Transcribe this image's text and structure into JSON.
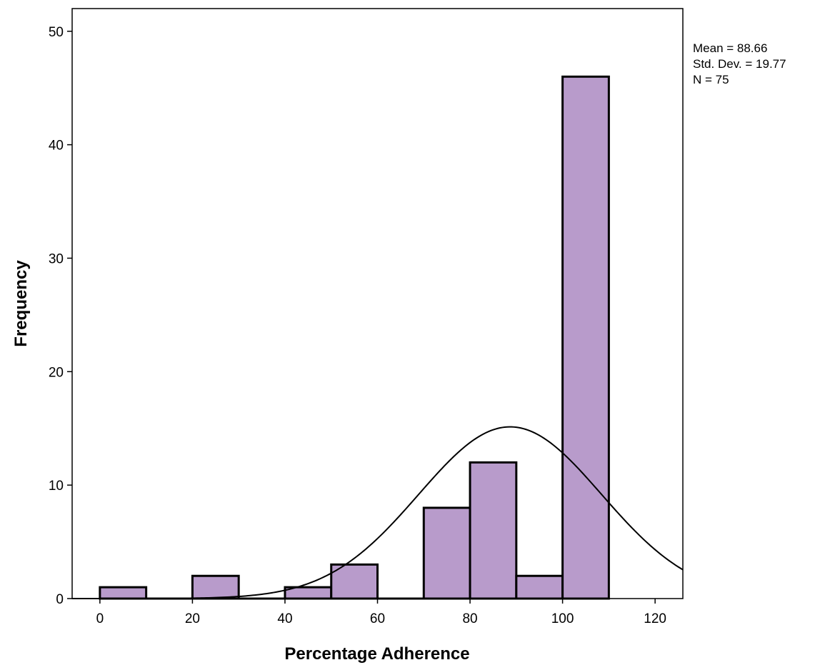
{
  "chart_data": {
    "type": "bar",
    "subtype": "histogram",
    "xlabel": "Percentage Adherence",
    "ylabel": "Frequency",
    "xlim": [
      -6,
      126
    ],
    "ylim": [
      0,
      52
    ],
    "x_ticks": [
      0,
      20,
      40,
      60,
      80,
      100,
      120
    ],
    "y_ticks": [
      0,
      10,
      20,
      30,
      40,
      50
    ],
    "bin_width": 10,
    "bins": [
      {
        "start": 0,
        "end": 10,
        "count": 1
      },
      {
        "start": 10,
        "end": 20,
        "count": 0
      },
      {
        "start": 20,
        "end": 30,
        "count": 2
      },
      {
        "start": 30,
        "end": 40,
        "count": 0
      },
      {
        "start": 40,
        "end": 50,
        "count": 1
      },
      {
        "start": 50,
        "end": 60,
        "count": 3
      },
      {
        "start": 60,
        "end": 70,
        "count": 0
      },
      {
        "start": 70,
        "end": 80,
        "count": 8
      },
      {
        "start": 80,
        "end": 90,
        "count": 12
      },
      {
        "start": 90,
        "end": 100,
        "count": 2
      },
      {
        "start": 100,
        "end": 110,
        "count": 46
      }
    ],
    "normal_curve": {
      "mean": 88.66,
      "std_dev": 19.77,
      "n": 75
    },
    "stats": {
      "mean": "Mean = 88.66",
      "std_dev": "Std. Dev. = 19.77",
      "n": "N = 75"
    },
    "grid": false,
    "bar_color": "#b89bcb",
    "bar_edge_color": "#000000",
    "curve_color": "#000000"
  }
}
